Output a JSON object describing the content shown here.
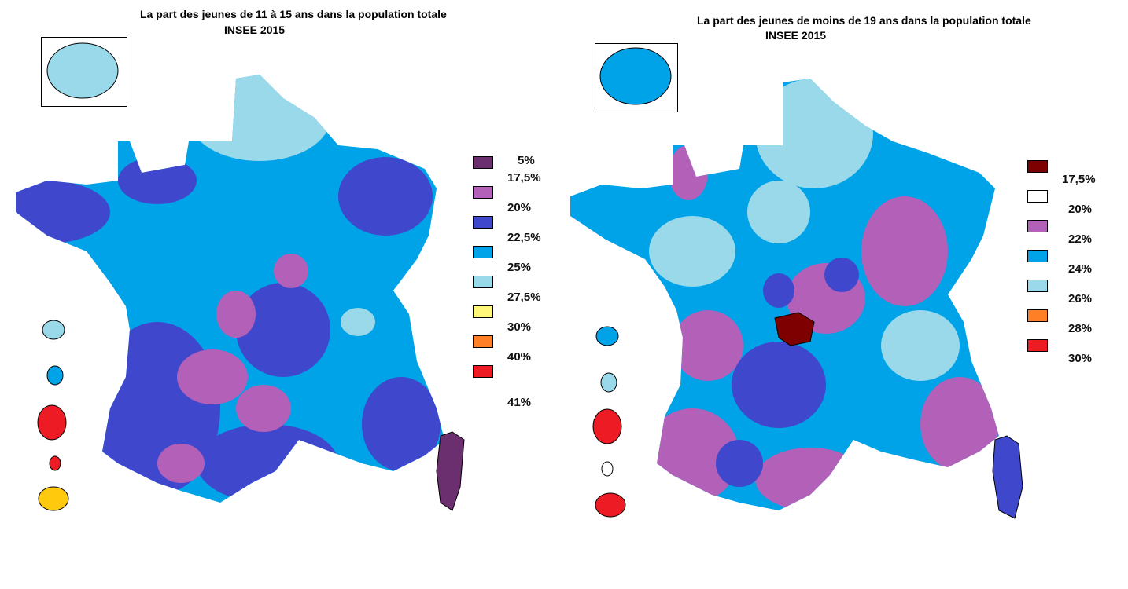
{
  "left_map": {
    "title": "La part des jeunes de 11 à 15 ans dans la population totale",
    "subtitle": "INSEE 2015",
    "legend": [
      {
        "label": "5%",
        "color": "#6b2e6e"
      },
      {
        "label": "17,5%",
        "color": "#b360b8"
      },
      {
        "label": "20%",
        "color": "#3f48cc"
      },
      {
        "label": "22,5%",
        "color": "#00a2e8"
      },
      {
        "label": "25%",
        "color": "#99d9ea"
      },
      {
        "label": "27,5%",
        "color": "#fff77a"
      },
      {
        "label": "30%",
        "color": "#ff7f27"
      },
      {
        "label": "40%",
        "color": "#ed1c24"
      },
      {
        "label": "41%",
        "color": ""
      }
    ]
  },
  "right_map": {
    "title": "La part des jeunes de moins de 19 ans dans la population totale",
    "subtitle": "INSEE 2015",
    "legend": [
      {
        "label": "17,5%",
        "color": "#7f0000"
      },
      {
        "label": "20%",
        "color": "#ffffff"
      },
      {
        "label": "22%",
        "color": "#b360b8"
      },
      {
        "label": "24%",
        "color": "#00a2e8"
      },
      {
        "label": "26%",
        "color": "#99d9ea"
      },
      {
        "label": "28%",
        "color": "#ff7f27"
      },
      {
        "label": "30%",
        "color": "#ed1c24"
      }
    ]
  }
}
